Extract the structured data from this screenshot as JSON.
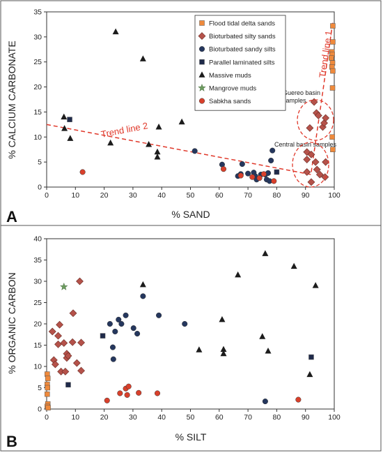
{
  "panels": [
    {
      "letter": "A",
      "xlabel": "% SAND",
      "ylabel": "% CALCIUM CARBONATE"
    },
    {
      "letter": "B",
      "xlabel": "% SILT",
      "ylabel": "% ORGANIC CARBON"
    }
  ],
  "legend": [
    {
      "label": "Flood tidal delta sands",
      "marker": "square",
      "color": "#ef8a3c"
    },
    {
      "label": "Bioturbated silty sands",
      "marker": "diamond",
      "color": "#b5524a"
    },
    {
      "label": "Bioturbated sandy silts",
      "marker": "circle",
      "color": "#25375e"
    },
    {
      "label": "Parallel laminated silts",
      "marker": "square",
      "color": "#1f2a4a"
    },
    {
      "label": "Massive muds",
      "marker": "triangle",
      "color": "#1c1c1c"
    },
    {
      "label": "Mangrove muds",
      "marker": "star",
      "color": "#6b9a5e"
    },
    {
      "label": "Sabkha sands",
      "marker": "circle",
      "color": "#d9402b"
    }
  ],
  "annotations": {
    "trend1": "Trend line 1",
    "trend2": "Trend line 2",
    "gureo": "Guereo basin samples",
    "central": "Central basin samples"
  },
  "accent_color": "#e0392b",
  "chart_data": [
    {
      "type": "scatter",
      "xlabel": "% SAND",
      "ylabel": "% CALCIUM CARBONATE",
      "xlim": [
        0,
        100
      ],
      "ylim": [
        0,
        35
      ],
      "xticks": [
        0,
        10,
        20,
        30,
        40,
        50,
        60,
        70,
        80,
        90,
        100
      ],
      "yticks": [
        0,
        5,
        10,
        15,
        20,
        25,
        30,
        35
      ],
      "trend_lines": [
        {
          "name": "Trend line 1",
          "points": [
            [
              92,
              3
            ],
            [
              99.5,
              33
            ]
          ]
        },
        {
          "name": "Trend line 2",
          "points": [
            [
              0,
              12.5
            ],
            [
              92,
              2.5
            ]
          ]
        }
      ],
      "series": [
        {
          "name": "Flood tidal delta sands",
          "points": [
            [
              99.5,
              32.2
            ],
            [
              99.5,
              29
            ],
            [
              99.2,
              27
            ],
            [
              99.3,
              26.5
            ],
            [
              99,
              25.8
            ],
            [
              99.4,
              24.8
            ],
            [
              99.2,
              24
            ],
            [
              99.5,
              23.2
            ],
            [
              99.4,
              19.8
            ],
            [
              99.3,
              10
            ],
            [
              99.5,
              7.5
            ]
          ]
        },
        {
          "name": "Bioturbated silty sands",
          "points": [
            [
              90.5,
              7
            ],
            [
              90.5,
              5.5
            ],
            [
              91.5,
              11.8
            ],
            [
              92,
              6.5
            ],
            [
              93,
              17
            ],
            [
              93.5,
              5
            ],
            [
              93.8,
              14.8
            ],
            [
              94,
              3.5
            ],
            [
              94.5,
              14.3
            ],
            [
              95,
              2.5
            ],
            [
              96,
              12
            ],
            [
              96.5,
              12.8
            ],
            [
              97,
              13.8
            ],
            [
              97,
              5
            ],
            [
              96.8,
              2
            ],
            [
              90.5,
              3
            ],
            [
              92,
              1
            ]
          ]
        },
        {
          "name": "Bioturbated sandy silts",
          "points": [
            [
              51.5,
              7.2
            ],
            [
              61,
              4.5
            ],
            [
              66.5,
              2.2
            ],
            [
              67.5,
              2.6
            ],
            [
              68,
              4.6
            ],
            [
              70,
              2.7
            ],
            [
              72,
              2.9
            ],
            [
              72.5,
              2.2
            ],
            [
              73,
              1.5
            ],
            [
              74.5,
              2.5
            ],
            [
              76,
              2.5
            ],
            [
              76.5,
              1.5
            ],
            [
              77,
              2.8
            ],
            [
              77.5,
              1.2
            ],
            [
              78,
              5.3
            ],
            [
              78.5,
              7.3
            ]
          ]
        },
        {
          "name": "Parallel laminated silts",
          "points": [
            [
              8,
              13.5
            ],
            [
              80,
              3
            ]
          ]
        },
        {
          "name": "Massive muds",
          "points": [
            [
              6,
              14
            ],
            [
              6.2,
              11.7
            ],
            [
              8.2,
              9.7
            ],
            [
              22.2,
              8.8
            ],
            [
              24,
              31
            ],
            [
              33.5,
              25.6
            ],
            [
              35.5,
              8.5
            ],
            [
              38.5,
              7
            ],
            [
              38.5,
              6
            ],
            [
              39,
              12
            ],
            [
              47,
              13
            ]
          ]
        },
        {
          "name": "Sabkha sands",
          "points": [
            [
              12.5,
              3
            ],
            [
              61.5,
              3.6
            ],
            [
              67.5,
              2.3
            ],
            [
              71.5,
              2
            ],
            [
              74,
              1.8
            ],
            [
              75.5,
              2.6
            ],
            [
              79,
              1.2
            ]
          ]
        }
      ]
    },
    {
      "type": "scatter",
      "xlabel": "% SILT",
      "ylabel": "% ORGANIC CARBON",
      "xlim": [
        0,
        100
      ],
      "ylim": [
        0,
        40
      ],
      "xticks": [
        0,
        10,
        20,
        30,
        40,
        50,
        60,
        70,
        80,
        90,
        100
      ],
      "yticks": [
        0,
        5,
        10,
        15,
        20,
        25,
        30,
        35,
        40
      ],
      "series": [
        {
          "name": "Flood tidal delta sands",
          "points": [
            [
              0.2,
              8.2
            ],
            [
              0.4,
              7.2
            ],
            [
              0.2,
              5.8
            ],
            [
              0.3,
              5
            ],
            [
              0.2,
              3.5
            ],
            [
              0.4,
              1.2
            ],
            [
              0.2,
              0.6
            ],
            [
              0.5,
              0.3
            ]
          ]
        },
        {
          "name": "Bioturbated silty sands",
          "points": [
            [
              2,
              18.2
            ],
            [
              2.5,
              11.5
            ],
            [
              3,
              10.5
            ],
            [
              4,
              17.2
            ],
            [
              4,
              15.2
            ],
            [
              4.5,
              19.8
            ],
            [
              5,
              8.8
            ],
            [
              6,
              15.5
            ],
            [
              6.5,
              8.8
            ],
            [
              7,
              13
            ],
            [
              7,
              12
            ],
            [
              7.5,
              12.5
            ],
            [
              9,
              15.7
            ],
            [
              9.2,
              22.5
            ],
            [
              10.5,
              10.8
            ],
            [
              11.5,
              30
            ],
            [
              12,
              9
            ],
            [
              12,
              15.6
            ]
          ]
        },
        {
          "name": "Bioturbated sandy silts",
          "points": [
            [
              22,
              20
            ],
            [
              23,
              14.5
            ],
            [
              23.2,
              11.7
            ],
            [
              23.8,
              18.2
            ],
            [
              25,
              21
            ],
            [
              26,
              20
            ],
            [
              27.5,
              22
            ],
            [
              30.2,
              19
            ],
            [
              31.5,
              17.7
            ],
            [
              33.5,
              26.5
            ],
            [
              39,
              22
            ],
            [
              48,
              20
            ],
            [
              76,
              1.8
            ]
          ]
        },
        {
          "name": "Parallel laminated silts",
          "points": [
            [
              7.5,
              5.7
            ],
            [
              19.5,
              17.2
            ],
            [
              92,
              12.2
            ]
          ]
        },
        {
          "name": "Massive muds",
          "points": [
            [
              33.5,
              29.2
            ],
            [
              53,
              13.9
            ],
            [
              61,
              21
            ],
            [
              61.5,
              14
            ],
            [
              61.5,
              13
            ],
            [
              66.5,
              31.5
            ],
            [
              75,
              17
            ],
            [
              76,
              36.5
            ],
            [
              77,
              13.6
            ],
            [
              86,
              33.5
            ],
            [
              91.5,
              8.1
            ],
            [
              93.5,
              29
            ]
          ]
        },
        {
          "name": "Mangrove muds",
          "points": [
            [
              6,
              28.7
            ]
          ]
        },
        {
          "name": "Sabkha sands",
          "points": [
            [
              21,
              2
            ],
            [
              25.5,
              3.7
            ],
            [
              27.5,
              4.8
            ],
            [
              28,
              3.3
            ],
            [
              28.5,
              5.3
            ],
            [
              32,
              3.8
            ],
            [
              38.5,
              3.7
            ],
            [
              87.5,
              2.2
            ]
          ]
        }
      ]
    }
  ]
}
